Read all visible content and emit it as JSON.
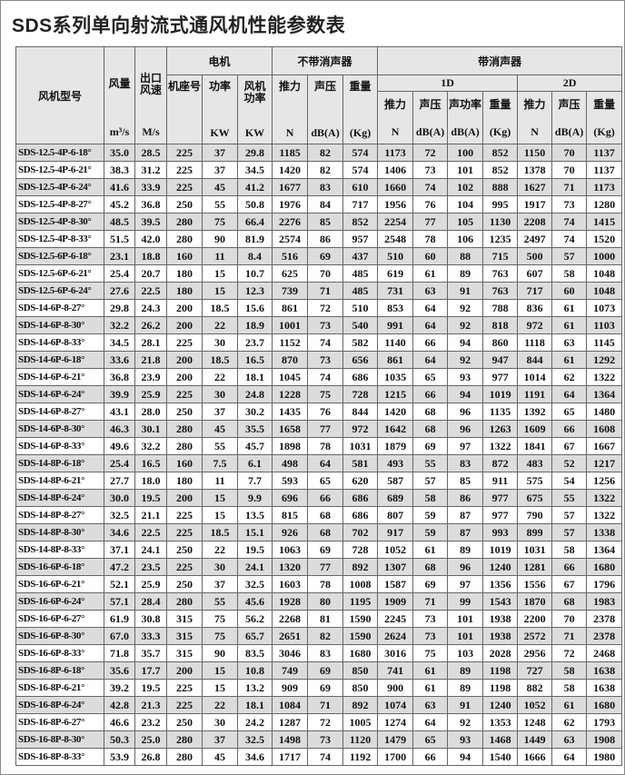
{
  "title": "SDS系列单向射流式通风机性能参数表",
  "header": {
    "model": "风机型号",
    "airflow": "风量",
    "airflow_unit": "m³/s",
    "outlet_speed": "出口风速",
    "outlet_speed_unit": "M/s",
    "motor": "电机",
    "frame_no": "机座号",
    "power": "功率",
    "power_unit": "KW",
    "fan_power": "风机功率",
    "fan_power_unit": "KW",
    "no_silencer": "不带消声器",
    "thrust": "推力",
    "thrust_unit": "N",
    "spl": "声压",
    "spl_unit": "dB(A)",
    "weight": "重量",
    "weight_unit": "(Kg)",
    "with_silencer": "带消声器",
    "d1": "1D",
    "d2": "2D",
    "swl": "声功率",
    "swl_unit": "dB(A)"
  },
  "rows": [
    [
      "SDS-12.5-4P-6-18°",
      "35.0",
      "28.5",
      "225",
      "37",
      "29.8",
      "1185",
      "82",
      "574",
      "1173",
      "72",
      "100",
      "852",
      "1150",
      "70",
      "1137"
    ],
    [
      "SDS-12.5-4P-6-21°",
      "38.3",
      "31.2",
      "225",
      "37",
      "34.5",
      "1420",
      "82",
      "574",
      "1406",
      "73",
      "101",
      "852",
      "1378",
      "70",
      "1137"
    ],
    [
      "SDS-12.5-4P-6-24°",
      "41.6",
      "33.9",
      "225",
      "45",
      "41.2",
      "1677",
      "83",
      "610",
      "1660",
      "74",
      "102",
      "888",
      "1627",
      "71",
      "1173"
    ],
    [
      "SDS-12.5-4P-8-27°",
      "45.2",
      "36.8",
      "250",
      "55",
      "50.8",
      "1976",
      "84",
      "717",
      "1956",
      "76",
      "104",
      "995",
      "1917",
      "73",
      "1280"
    ],
    [
      "SDS-12.5-4P-8-30°",
      "48.5",
      "39.5",
      "280",
      "75",
      "66.4",
      "2276",
      "85",
      "852",
      "2254",
      "77",
      "105",
      "1130",
      "2208",
      "74",
      "1415"
    ],
    [
      "SDS-12.5-4P-8-33°",
      "51.5",
      "42.0",
      "280",
      "90",
      "81.9",
      "2574",
      "86",
      "957",
      "2548",
      "78",
      "106",
      "1235",
      "2497",
      "74",
      "1520"
    ],
    [
      "SDS-12.5-6P-6-18°",
      "23.1",
      "18.8",
      "160",
      "11",
      "8.4",
      "516",
      "69",
      "437",
      "510",
      "60",
      "88",
      "715",
      "500",
      "57",
      "1000"
    ],
    [
      "SDS-12.5-6P-6-21°",
      "25.4",
      "20.7",
      "180",
      "15",
      "10.7",
      "625",
      "70",
      "485",
      "619",
      "61",
      "89",
      "763",
      "607",
      "58",
      "1048"
    ],
    [
      "SDS-12.5-6P-6-24°",
      "27.6",
      "22.5",
      "180",
      "15",
      "12.3",
      "739",
      "71",
      "485",
      "731",
      "63",
      "91",
      "763",
      "717",
      "60",
      "1048"
    ],
    [
      "SDS-14-6P-8-27°",
      "29.8",
      "24.3",
      "200",
      "18.5",
      "15.6",
      "861",
      "72",
      "510",
      "853",
      "64",
      "92",
      "788",
      "836",
      "61",
      "1073"
    ],
    [
      "SDS-14-6P-8-30°",
      "32.2",
      "26.2",
      "200",
      "22",
      "18.9",
      "1001",
      "73",
      "540",
      "991",
      "64",
      "92",
      "818",
      "972",
      "61",
      "1103"
    ],
    [
      "SDS-14-6P-8-33°",
      "34.5",
      "28.1",
      "225",
      "30",
      "23.7",
      "1152",
      "74",
      "582",
      "1140",
      "66",
      "94",
      "860",
      "1118",
      "63",
      "1145"
    ],
    [
      "SDS-14-6P-6-18°",
      "33.6",
      "21.8",
      "200",
      "18.5",
      "16.5",
      "870",
      "73",
      "656",
      "861",
      "64",
      "92",
      "947",
      "844",
      "61",
      "1292"
    ],
    [
      "SDS-14-6P-6-21°",
      "36.8",
      "23.9",
      "200",
      "22",
      "18.1",
      "1045",
      "74",
      "686",
      "1035",
      "65",
      "93",
      "977",
      "1014",
      "62",
      "1322"
    ],
    [
      "SDS-14-6P-6-24°",
      "39.9",
      "25.9",
      "225",
      "30",
      "24.8",
      "1228",
      "75",
      "728",
      "1215",
      "66",
      "94",
      "1019",
      "1191",
      "64",
      "1364"
    ],
    [
      "SDS-14-6P-8-27°",
      "43.1",
      "28.0",
      "250",
      "37",
      "30.2",
      "1435",
      "76",
      "844",
      "1420",
      "68",
      "96",
      "1135",
      "1392",
      "65",
      "1480"
    ],
    [
      "SDS-14-6P-8-30°",
      "46.3",
      "30.1",
      "280",
      "45",
      "35.5",
      "1658",
      "77",
      "972",
      "1642",
      "68",
      "96",
      "1263",
      "1609",
      "66",
      "1608"
    ],
    [
      "SDS-14-6P-8-33°",
      "49.6",
      "32.2",
      "280",
      "55",
      "45.7",
      "1898",
      "78",
      "1031",
      "1879",
      "69",
      "97",
      "1322",
      "1841",
      "67",
      "1667"
    ],
    [
      "SDS-14-8P-6-18°",
      "25.4",
      "16.5",
      "160",
      "7.5",
      "6.1",
      "498",
      "64",
      "581",
      "493",
      "55",
      "83",
      "872",
      "483",
      "52",
      "1217"
    ],
    [
      "SDS-14-8P-6-21°",
      "27.7",
      "18.0",
      "180",
      "11",
      "7.7",
      "593",
      "65",
      "620",
      "587",
      "57",
      "85",
      "911",
      "575",
      "54",
      "1256"
    ],
    [
      "SDS-14-8P-6-24°",
      "30.0",
      "19.5",
      "200",
      "15",
      "9.9",
      "696",
      "66",
      "686",
      "689",
      "58",
      "86",
      "977",
      "675",
      "55",
      "1322"
    ],
    [
      "SDS-14-8P-8-27°",
      "32.5",
      "21.1",
      "225",
      "15",
      "13.5",
      "815",
      "68",
      "686",
      "807",
      "59",
      "87",
      "977",
      "790",
      "57",
      "1322"
    ],
    [
      "SDS-14-8P-8-30°",
      "34.6",
      "22.5",
      "225",
      "18.5",
      "15.1",
      "926",
      "68",
      "702",
      "917",
      "59",
      "87",
      "993",
      "899",
      "57",
      "1338"
    ],
    [
      "SDS-14-8P-8-33°",
      "37.1",
      "24.1",
      "250",
      "22",
      "19.5",
      "1063",
      "69",
      "728",
      "1052",
      "61",
      "89",
      "1019",
      "1031",
      "58",
      "1364"
    ],
    [
      "SDS-16-6P-6-18°",
      "47.2",
      "23.5",
      "225",
      "30",
      "24.1",
      "1320",
      "77",
      "892",
      "1307",
      "68",
      "96",
      "1240",
      "1281",
      "66",
      "1680"
    ],
    [
      "SDS-16-6P-6-21°",
      "52.1",
      "25.9",
      "250",
      "37",
      "32.5",
      "1603",
      "78",
      "1008",
      "1587",
      "69",
      "97",
      "1356",
      "1556",
      "67",
      "1796"
    ],
    [
      "SDS-16-6P-6-24°",
      "57.1",
      "28.4",
      "280",
      "55",
      "45.6",
      "1928",
      "80",
      "1195",
      "1909",
      "71",
      "99",
      "1543",
      "1870",
      "68",
      "1983"
    ],
    [
      "SDS-16-6P-6-27°",
      "61.9",
      "30.8",
      "315",
      "75",
      "56.2",
      "2268",
      "81",
      "1590",
      "2245",
      "73",
      "101",
      "1938",
      "2200",
      "70",
      "2378"
    ],
    [
      "SDS-16-6P-8-30°",
      "67.0",
      "33.3",
      "315",
      "75",
      "65.7",
      "2651",
      "82",
      "1590",
      "2624",
      "73",
      "101",
      "1938",
      "2572",
      "71",
      "2378"
    ],
    [
      "SDS-16-6P-8-33°",
      "71.8",
      "35.7",
      "315",
      "90",
      "83.5",
      "3046",
      "83",
      "1680",
      "3016",
      "75",
      "103",
      "2028",
      "2956",
      "72",
      "2468"
    ],
    [
      "SDS-16-8P-6-18°",
      "35.6",
      "17.7",
      "200",
      "15",
      "10.8",
      "749",
      "69",
      "850",
      "741",
      "61",
      "89",
      "1198",
      "727",
      "58",
      "1638"
    ],
    [
      "SDS-16-8P-6-21°",
      "39.2",
      "19.5",
      "225",
      "15",
      "13.2",
      "909",
      "69",
      "850",
      "900",
      "61",
      "89",
      "1198",
      "882",
      "58",
      "1638"
    ],
    [
      "SDS-16-8P-6-24°",
      "42.8",
      "21.3",
      "225",
      "22",
      "18.1",
      "1084",
      "71",
      "892",
      "1074",
      "63",
      "91",
      "1240",
      "1052",
      "61",
      "1680"
    ],
    [
      "SDS-16-8P-6-27°",
      "46.6",
      "23.2",
      "250",
      "30",
      "24.2",
      "1287",
      "72",
      "1005",
      "1274",
      "64",
      "92",
      "1353",
      "1248",
      "62",
      "1793"
    ],
    [
      "SDS-16-8P-8-30°",
      "50.3",
      "25.0",
      "280",
      "37",
      "32.5",
      "1498",
      "73",
      "1120",
      "1479",
      "65",
      "93",
      "1468",
      "1449",
      "63",
      "1908"
    ],
    [
      "SDS-16-8P-8-33°",
      "53.9",
      "26.8",
      "280",
      "45",
      "34.6",
      "1717",
      "74",
      "1192",
      "1700",
      "66",
      "94",
      "1540",
      "1666",
      "64",
      "1980"
    ]
  ]
}
